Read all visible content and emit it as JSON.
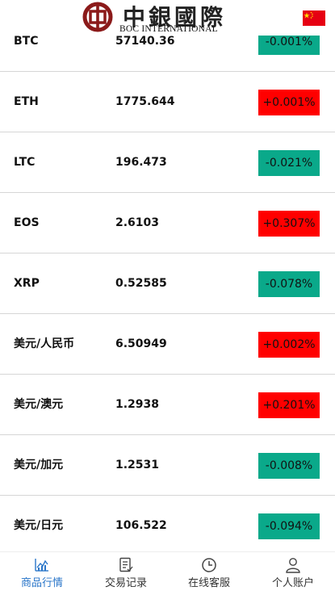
{
  "header": {
    "logo_cn": "中銀國際",
    "logo_en": "BOC INTERNATIONAL",
    "flag_icon": "china-flag-icon"
  },
  "colors": {
    "up": "#ff0000",
    "down": "#0aa98a",
    "active_tab": "#2a76c9"
  },
  "quotes": [
    {
      "symbol": "BTC",
      "price": "57140.36",
      "change": "-0.001%",
      "direction": "down"
    },
    {
      "symbol": "ETH",
      "price": "1775.644",
      "change": "+0.001%",
      "direction": "up"
    },
    {
      "symbol": "LTC",
      "price": "196.473",
      "change": "-0.021%",
      "direction": "down"
    },
    {
      "symbol": "EOS",
      "price": "2.6103",
      "change": "+0.307%",
      "direction": "up"
    },
    {
      "symbol": "XRP",
      "price": "0.52585",
      "change": "-0.078%",
      "direction": "down"
    },
    {
      "symbol": "美元/人民币",
      "price": "6.50949",
      "change": "+0.002%",
      "direction": "up"
    },
    {
      "symbol": "美元/澳元",
      "price": "1.2938",
      "change": "+0.201%",
      "direction": "up"
    },
    {
      "symbol": "美元/加元",
      "price": "1.2531",
      "change": "-0.008%",
      "direction": "down"
    },
    {
      "symbol": "美元/日元",
      "price": "106.522",
      "change": "-0.094%",
      "direction": "down"
    }
  ],
  "tabs": [
    {
      "label": "商品行情",
      "icon": "market-chart-icon",
      "active": true
    },
    {
      "label": "交易记录",
      "icon": "records-icon",
      "active": false
    },
    {
      "label": "在线客服",
      "icon": "clock-service-icon",
      "active": false
    },
    {
      "label": "个人账户",
      "icon": "user-icon",
      "active": false
    }
  ]
}
